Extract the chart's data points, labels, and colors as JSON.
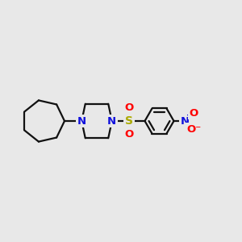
{
  "background_color": "#e8e8e8",
  "bond_color": "#111111",
  "N_color": "#1010dd",
  "S_color": "#aaaa00",
  "O_color": "#ff0000",
  "N_label": "N",
  "S_label": "S",
  "O_label": "O",
  "figsize": [
    3.0,
    3.0
  ],
  "dpi": 100,
  "xlim": [
    0,
    12
  ],
  "ylim": [
    2,
    8
  ]
}
